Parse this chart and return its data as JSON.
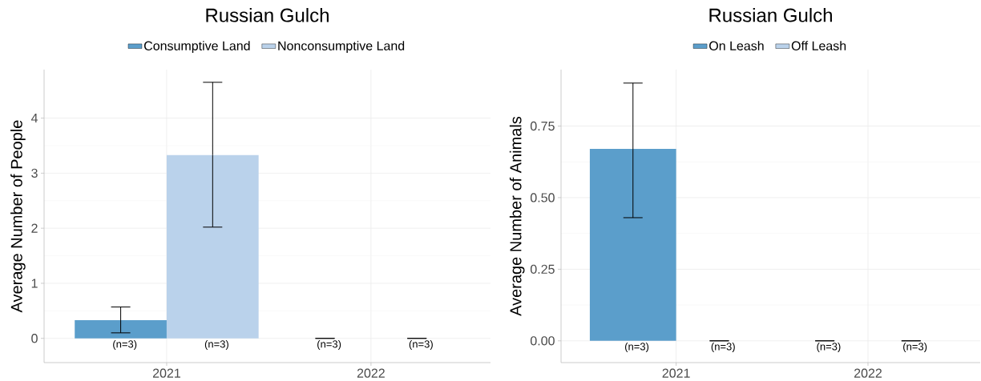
{
  "chart_data": [
    {
      "type": "bar",
      "title": "Russian Gulch",
      "ylabel": "Average Number of People",
      "categories": [
        "2021",
        "2022"
      ],
      "series": [
        {
          "name": "Consumptive Land",
          "color": "#5b9ecb",
          "values": [
            0.33,
            0
          ],
          "errors": [
            [
              0.1,
              0.57
            ],
            [
              0,
              0
            ]
          ]
        },
        {
          "name": "Nonconsumptive Land",
          "color": "#bad2eb",
          "values": [
            3.33,
            0
          ],
          "errors": [
            [
              2.02,
              4.65
            ],
            [
              0,
              0
            ]
          ]
        }
      ],
      "ylim": [
        -0.44,
        4.88
      ],
      "yticks": [
        0,
        1,
        2,
        3,
        4
      ],
      "grid": true,
      "legend": "top",
      "annotations": [
        "(n=3)",
        "(n=3)",
        "(n=3)",
        "(n=3)"
      ]
    },
    {
      "type": "bar",
      "title": "Russian Gulch",
      "ylabel": "Average Number of Animals",
      "categories": [
        "2021",
        "2022"
      ],
      "series": [
        {
          "name": "On Leash",
          "color": "#5b9ecb",
          "values": [
            0.67,
            0
          ],
          "errors": [
            [
              0.43,
              0.9
            ],
            [
              0,
              0
            ]
          ]
        },
        {
          "name": "Off Leash",
          "color": "#bad2eb",
          "values": [
            0,
            0
          ],
          "errors": [
            [
              0,
              0
            ],
            [
              0,
              0
            ]
          ]
        }
      ],
      "ylim": [
        -0.076,
        0.947
      ],
      "yticks": [
        {
          "value": 0,
          "label": "0.00"
        },
        {
          "value": 0.25,
          "label": "0.25"
        },
        {
          "value": 0.5,
          "label": "0.50"
        },
        {
          "value": 0.75,
          "label": "0.75"
        }
      ],
      "grid": true,
      "legend": "top",
      "annotations": [
        "(n=3)",
        "(n=3)",
        "(n=3)",
        "(n=3)"
      ]
    }
  ]
}
